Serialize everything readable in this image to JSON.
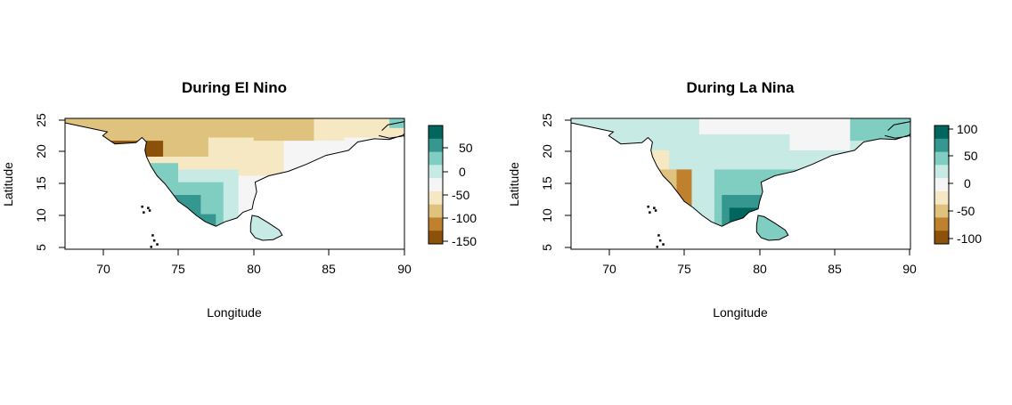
{
  "figure": {
    "panels": [
      {
        "title": "During El Nino",
        "xlabel": "Longitude",
        "ylabel": "Latitude",
        "x_ticks": [
          "70",
          "75",
          "80",
          "85",
          "90"
        ],
        "y_ticks": [
          "5",
          "10",
          "15",
          "20",
          "25"
        ],
        "colorbar_ticks": [
          "50",
          "0",
          "-50",
          "-100",
          "-150"
        ],
        "colorbar_colors": [
          "#01665e",
          "#35978f",
          "#80cdc1",
          "#c7eae5",
          "#f5f5f5",
          "#f6e8c3",
          "#dfc27d",
          "#bf812d",
          "#8c510a"
        ]
      },
      {
        "title": "During La Nina",
        "xlabel": "Longitude",
        "ylabel": "Latitude",
        "x_ticks": [
          "70",
          "75",
          "80",
          "85",
          "90"
        ],
        "y_ticks": [
          "5",
          "10",
          "15",
          "20",
          "25"
        ],
        "colorbar_ticks": [
          "100",
          "50",
          "0",
          "-50",
          "-100"
        ],
        "colorbar_colors": [
          "#01665e",
          "#35978f",
          "#80cdc1",
          "#c7eae5",
          "#f5f5f5",
          "#f6e8c3",
          "#dfc27d",
          "#bf812d",
          "#8c510a"
        ]
      }
    ]
  },
  "chart_data": [
    {
      "type": "heatmap",
      "title": "During El Nino",
      "xlabel": "Longitude",
      "ylabel": "Latitude",
      "xlim": [
        67.5,
        90
      ],
      "ylim": [
        4.5,
        25
      ],
      "xticks": [
        70,
        75,
        80,
        85,
        90
      ],
      "yticks": [
        5,
        10,
        15,
        20,
        25
      ],
      "colorbar": {
        "ticks": [
          50,
          0,
          -50,
          -100,
          -150
        ],
        "range": [
          -170,
          95
        ]
      },
      "grid": false
    },
    {
      "type": "heatmap",
      "title": "During La Nina",
      "xlabel": "Longitude",
      "ylabel": "Latitude",
      "xlim": [
        67.5,
        90
      ],
      "ylim": [
        4.5,
        25
      ],
      "xticks": [
        70,
        75,
        80,
        85,
        90
      ],
      "yticks": [
        5,
        10,
        15,
        20,
        25
      ],
      "colorbar": {
        "ticks": [
          100,
          50,
          0,
          -50,
          -100
        ],
        "range": [
          -125,
          115
        ]
      },
      "grid": false
    }
  ]
}
